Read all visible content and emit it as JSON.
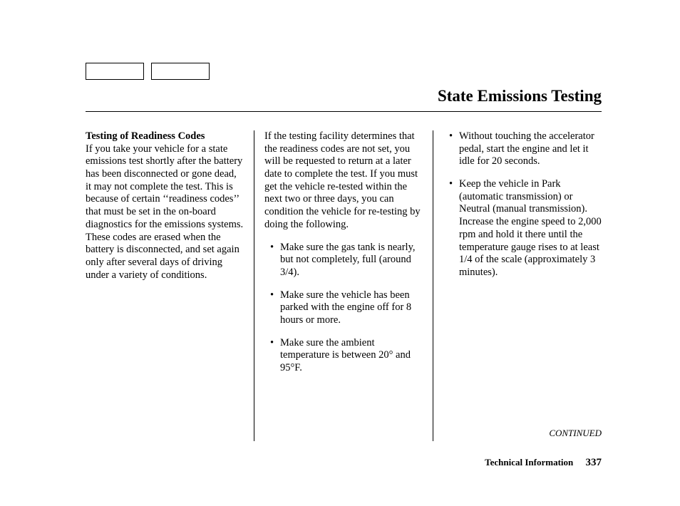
{
  "title": "State Emissions Testing",
  "columns": {
    "left": {
      "subhead": "Testing of Readiness Codes",
      "body": "If you take your vehicle for a state emissions test shortly after the battery has been disconnected or gone dead, it may not complete the test. This is because of certain ‘‘readiness codes’’ that must be set in the on-board diagnostics for the emissions systems. These codes are erased when the battery is disconnected, and set again only after several days of driving under a variety of conditions."
    },
    "middle": {
      "intro": "If the testing facility determines that the readiness codes are not set, you will be requested to return at a later date to complete the test. If you must get the vehicle re-tested within the next two or three days, you can condition the vehicle for re-testing by doing the following.",
      "bullets": [
        "Make sure the gas tank is nearly, but not completely, full (around 3/4).",
        "Make sure the vehicle has been parked with the engine off for 8 hours or more.",
        "Make sure the ambient temperature is between 20° and 95°F."
      ]
    },
    "right": {
      "bullets": [
        "Without touching the accelerator pedal, start the engine and let it idle for 20 seconds.",
        "Keep the vehicle in Park (automatic transmission) or Neutral (manual transmission). Increase the engine speed to 2,000 rpm and hold it there until the temperature gauge rises to at least 1/4 of the scale (approximately 3 minutes)."
      ]
    }
  },
  "continued": "CONTINUED",
  "footer": {
    "section": "Technical Information",
    "page": "337"
  }
}
